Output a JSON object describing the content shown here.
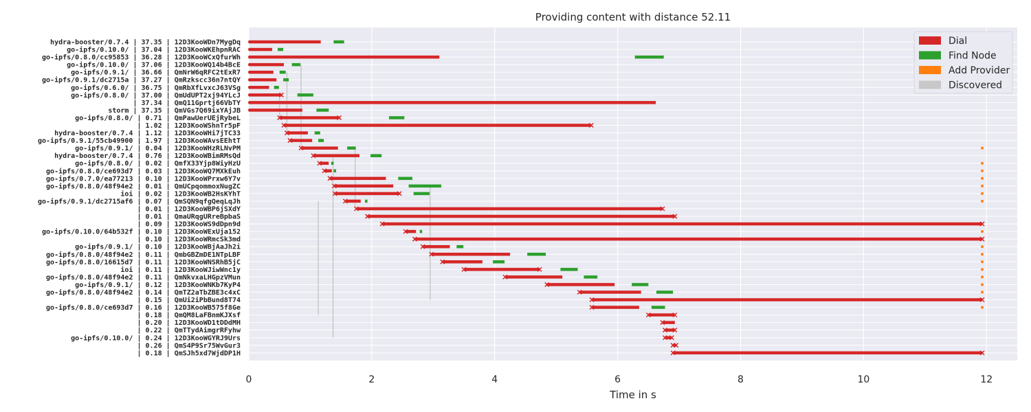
{
  "chart_data": {
    "type": "gantt",
    "title": "Providing content with distance 52.11",
    "xlabel": "Time in s",
    "xlim": [
      0,
      12.5
    ],
    "xticks": [
      0,
      2,
      4,
      6,
      8,
      10,
      12
    ],
    "grid": true,
    "legend_placement": "top-right",
    "colors": {
      "dial": "#d62728",
      "find_node": "#2ca02c",
      "add_provider": "#ff7f0e",
      "discovered": "#c8c8c8",
      "background": "#eaeaf2",
      "grid": "#ffffff"
    },
    "legend": [
      {
        "key": "dial",
        "label": "Dial"
      },
      {
        "key": "find_node",
        "label": "Find Node"
      },
      {
        "key": "add_provider",
        "label": "Add Provider"
      },
      {
        "key": "discovered",
        "label": "Discovered"
      }
    ],
    "rows": [
      {
        "label": "hydra-booster/0.7.4 | 37.35 | 12D3KooWDn7MygDq",
        "dial": [
          0.0,
          1.17
        ],
        "find": [
          1.38,
          1.55
        ]
      },
      {
        "label": "go-ipfs/0.10.0/ | 37.04 | 12D3KooWKEhpnRAC",
        "dial": [
          0.0,
          0.38
        ],
        "find": [
          0.47,
          0.56
        ]
      },
      {
        "label": "go-ipfs/0.8.0/cc95853 | 36.28 | 12D3KooWCxQfurWh",
        "dial": [
          0.0,
          3.1
        ],
        "find": [
          6.28,
          6.75
        ]
      },
      {
        "label": "go-ipfs/0.10.0/ | 37.06 | 12D3KooWQ14b4BcE",
        "dial": [
          0.0,
          0.57
        ],
        "find": [
          0.7,
          0.84
        ]
      },
      {
        "label": "go-ipfs/0.9.1/ | 36.66 | QmNrW6qRFC2tExR7",
        "dial": [
          0.0,
          0.4
        ],
        "find": [
          0.5,
          0.6
        ]
      },
      {
        "label": "go-ipfs/0.9.1/dc2715a | 37.27 | QmRzkscc36n7ntQY",
        "dial": [
          0.0,
          0.45
        ],
        "find": [
          0.56,
          0.65
        ]
      },
      {
        "label": "go-ipfs/0.6.0/ | 36.75 | QmRbXfLvxcJ63VSg",
        "dial": [
          0.0,
          0.33
        ],
        "find": [
          0.41,
          0.49
        ]
      },
      {
        "label": "go-ipfs/0.8.0/ | 37.00 | QmUdUPT2xj94YLcJ",
        "dial": [
          0.0,
          0.53
        ],
        "find": [
          0.79,
          1.05
        ],
        "fail": true
      },
      {
        "label": "| 37.34 | QmQ11Gprtj66VbTY",
        "dial": [
          0.0,
          6.62
        ]
      },
      {
        "label": "storm | 37.35 | QmVGs7Q69ixYAjJB",
        "dial": [
          0.0,
          0.87
        ],
        "find": [
          1.1,
          1.3
        ]
      },
      {
        "label": "go-ipfs/0.8.0/ | 0.71 | QmPawUerUEjRybeL",
        "dial": [
          0.5,
          1.47
        ],
        "find": [
          2.28,
          2.53
        ],
        "fail": true
      },
      {
        "label": "| 1.02 | 12D3KooWShnTr5pF",
        "dial": [
          0.57,
          5.57
        ],
        "fail": true
      },
      {
        "label": "hydra-booster/0.7.4 | 1.12 | 12D3KooWHi7jTC33",
        "dial": [
          0.62,
          0.96
        ],
        "find": [
          1.07,
          1.16
        ]
      },
      {
        "label": "go-ipfs/0.9.1/55cb49900 | 1.97 | 12D3KooWAvsEEhtT",
        "dial": [
          0.67,
          1.03
        ],
        "find": [
          1.13,
          1.22
        ]
      },
      {
        "label": "go-ipfs/0.9.1/ | 0.04 | 12D3KooWHzRLNvPM",
        "dial": [
          0.85,
          1.45
        ],
        "find": [
          1.6,
          1.74
        ],
        "ap": 11.93
      },
      {
        "label": "hydra-booster/0.7.4 | 0.76 | 12D3KooWBimRMsQd",
        "dial": [
          1.05,
          1.8
        ],
        "find": [
          1.98,
          2.16
        ]
      },
      {
        "label": "go-ipfs/0.8.0/ | 0.02 | QmfX33Yjp8WiyHzU",
        "dial": [
          1.15,
          1.3
        ],
        "find": [
          1.34,
          1.38
        ],
        "ap": 11.93
      },
      {
        "label": "go-ipfs/0.8.0/ce693d7 | 0.03 | 12D3KooWQ7MXkEuh",
        "dial": [
          1.23,
          1.35
        ],
        "find": [
          1.38,
          1.42
        ],
        "ap": 11.93
      },
      {
        "label": "go-ipfs/0.7.0/ea77213 | 0.10 | 12D3KooWPrxw6Y7v",
        "dial": [
          1.32,
          2.23
        ],
        "find": [
          2.43,
          2.66
        ],
        "ap": 11.93
      },
      {
        "label": "go-ipfs/0.8.0/48f94e2 | 0.01 | QmUCpqommoxNugZC",
        "dial": [
          1.39,
          2.35
        ],
        "find": [
          2.6,
          3.13
        ],
        "ap": 11.93
      },
      {
        "label": "ioi | 0.02 | 12D3KooWB2HsKYhT",
        "dial": [
          1.4,
          2.45
        ],
        "find": [
          2.68,
          2.94
        ],
        "fail": true,
        "ap": 11.93
      },
      {
        "label": "go-ipfs/0.9.1/dc2715af6 | 0.07 | QmSQN9qfgQeqLqJh",
        "dial": [
          1.57,
          1.82
        ],
        "find": [
          1.89,
          1.93
        ],
        "ap": 11.93
      },
      {
        "label": "| 0.01 | 12D3KooWBP6jSXdY",
        "dial": [
          1.75,
          6.73
        ],
        "fail": true
      },
      {
        "label": "| 0.01 | QmaURqgURreBpbaS",
        "dial": [
          1.93,
          6.93
        ],
        "fail": true
      },
      {
        "label": "| 0.09 | 12D3KooWS9dDpn9d",
        "dial": [
          2.17,
          11.93
        ],
        "fail": true
      },
      {
        "label": "go-ipfs/0.10.0/64b532f | 0.10 | 12D3KooWExUja152",
        "dial": [
          2.55,
          2.72
        ],
        "find": [
          2.78,
          2.82
        ],
        "ap": 11.93
      },
      {
        "label": "| 0.10 | 12D3KooWRmcSk3md",
        "dial": [
          2.7,
          11.93
        ],
        "fail": true
      },
      {
        "label": "go-ipfs/0.9.1/ | 0.10 | 12D3KooWBjAaJh2i",
        "dial": [
          2.83,
          3.27
        ],
        "find": [
          3.38,
          3.49
        ],
        "ap": 11.93
      },
      {
        "label": "go-ipfs/0.8.0/48f94e2 | 0.11 | QmbGBZmDE1NTpLBF",
        "dial": [
          2.97,
          4.25
        ],
        "find": [
          4.53,
          4.83
        ],
        "ap": 11.93
      },
      {
        "label": "go-ipfs/0.8.0/16615d7 | 0.11 | 12D3KooWNSRhB5jC",
        "dial": [
          3.15,
          3.8
        ],
        "find": [
          3.97,
          4.16
        ],
        "ap": 11.93
      },
      {
        "label": "ioi | 0.11 | 12D3KooWJiwWnc1y",
        "dial": [
          3.5,
          4.73
        ],
        "find": [
          5.07,
          5.35
        ],
        "fail": true,
        "ap": 11.93
      },
      {
        "label": "go-ipfs/0.8.0/48f94e2 | 0.11 | QmNkvxaLHGpzVMun",
        "dial": [
          4.17,
          5.1
        ],
        "find": [
          5.45,
          5.67
        ],
        "ap": 11.93
      },
      {
        "label": "go-ipfs/0.9.1/ | 0.12 | 12D3KooWNKb7KyP4",
        "dial": [
          4.85,
          5.95
        ],
        "find": [
          6.23,
          6.5
        ],
        "ap": 11.93
      },
      {
        "label": "go-ipfs/0.8.0/48f94e2 | 0.14 | QmTZ2aTbZBE3c4xC",
        "dial": [
          5.38,
          6.38
        ],
        "find": [
          6.63,
          6.9
        ],
        "ap": 11.93
      },
      {
        "label": "| 0.15 | QmUi2iPbBund8T74",
        "dial": [
          5.58,
          11.93
        ],
        "fail": true
      },
      {
        "label": "go-ipfs/0.8.0/ce693d7 | 0.16 | 12D3KooWB575f8Ge",
        "dial": [
          5.58,
          6.35
        ],
        "find": [
          6.55,
          6.77
        ],
        "ap": 11.93
      },
      {
        "label": "| 0.18 | QmQM8LaFBnmKJXsf",
        "dial": [
          6.5,
          6.93
        ],
        "fail": true
      },
      {
        "label": "| 0.20 | 12D3KooWD1tDDdMH",
        "dial": [
          6.73,
          6.93
        ]
      },
      {
        "label": "| 0.22 | QmTTydAimgrRFyhw",
        "dial": [
          6.77,
          6.93
        ],
        "fail": true
      },
      {
        "label": "go-ipfs/0.10.0/ | 0.24 | 12D3KooWGYRJ9Urs",
        "dial": [
          6.77,
          6.88
        ],
        "fail": true
      },
      {
        "label": "| 0.26 | QmS4P9Sr75WvGur3",
        "dial": [
          6.9,
          6.95
        ],
        "fail": true
      },
      {
        "label": "| 0.18 | QmSJh5xd7WjdDP1H",
        "dial": [
          6.9,
          11.93
        ],
        "fail": true
      }
    ],
    "discovered_links": [
      {
        "x": 0.5,
        "from": 7,
        "to": 10
      },
      {
        "x": 0.62,
        "from": 4,
        "to": 12
      },
      {
        "x": 0.85,
        "from": 3,
        "to": 14
      },
      {
        "x": 1.13,
        "from": 21,
        "to": 36
      },
      {
        "x": 1.37,
        "from": 15,
        "to": 39
      },
      {
        "x": 1.73,
        "from": 14,
        "to": 22
      },
      {
        "x": 2.95,
        "from": 19,
        "to": 34
      }
    ]
  }
}
